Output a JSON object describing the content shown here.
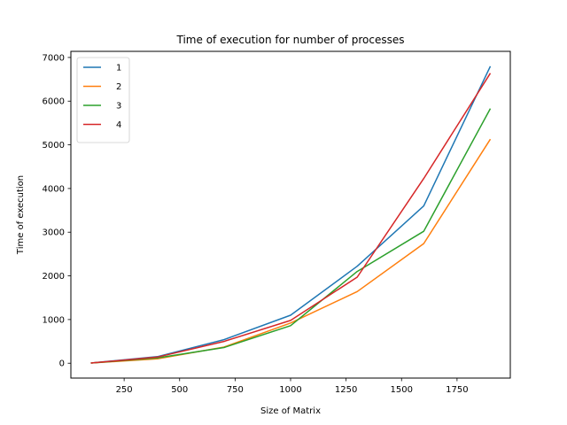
{
  "chart_data": {
    "type": "line",
    "title": "Time of execution for number of processes",
    "xlabel": "Size of Matrix",
    "ylabel": "Time of execution",
    "x": [
      100,
      400,
      700,
      1000,
      1300,
      1600,
      1900
    ],
    "xlim": [
      10,
      1990
    ],
    "ylim": [
      -340,
      7140
    ],
    "xticks": [
      250,
      500,
      750,
      1000,
      1250,
      1500,
      1750
    ],
    "yticks": [
      0,
      1000,
      2000,
      3000,
      4000,
      5000,
      6000,
      7000
    ],
    "grid": false,
    "legend_position": "top-left",
    "series": [
      {
        "name": "1",
        "color": "#1f77b4",
        "values": [
          5,
          150,
          540,
          1100,
          2220,
          3600,
          6800
        ]
      },
      {
        "name": "2",
        "color": "#ff7f0e",
        "values": [
          5,
          100,
          370,
          920,
          1640,
          2740,
          5130
        ]
      },
      {
        "name": "3",
        "color": "#2ca02c",
        "values": [
          5,
          120,
          360,
          860,
          2100,
          3020,
          5830
        ]
      },
      {
        "name": "4",
        "color": "#d62728",
        "values": [
          5,
          140,
          500,
          980,
          1970,
          4230,
          6640
        ]
      }
    ]
  }
}
